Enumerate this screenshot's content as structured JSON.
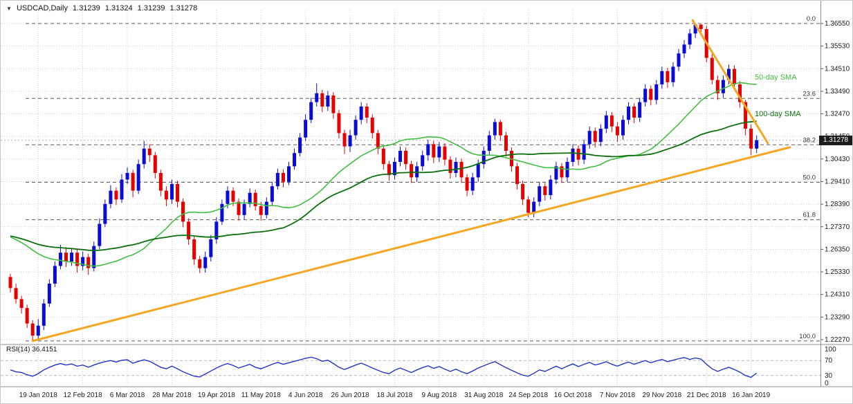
{
  "header": {
    "marker": "▼",
    "symbol_period": "USDCAD,Daily",
    "open": "1.31239",
    "high": "1.31324",
    "low": "1.31239",
    "close": "1.31278"
  },
  "colors": {
    "bull": "#0b0bd6",
    "bear": "#e60000",
    "sma50": "#3fbf3f",
    "sma100": "#0a6e0a",
    "trendline": "#f5a623",
    "rsi": "#2233cc",
    "grid": "#cfcfcf",
    "fib": "#5a5a5a",
    "axis_text": "#1a1a1a",
    "separator": "#8c8c8c",
    "badge_bg": "#1c1c1c",
    "badge_text": "#ffffff"
  },
  "y_axis": {
    "labels": [
      "1.36550",
      "1.35530",
      "1.34510",
      "1.33490",
      "1.32470",
      "1.31450",
      "1.30430",
      "1.29410",
      "1.28390",
      "1.27370",
      "1.26350",
      "1.25330",
      "1.24310",
      "1.23290",
      "1.22270"
    ],
    "price_badge": "1.31278"
  },
  "x_axis": {
    "labels": [
      "19 Jan 2018",
      "12 Feb 2018",
      "6 Mar 2018",
      "28 Mar 2018",
      "19 Apr 2018",
      "11 May 2018",
      "4 Jun 2018",
      "26 Jun 2018",
      "18 Jul 2018",
      "9 Aug 2018",
      "31 Aug 2018",
      "24 Sep 2018",
      "16 Oct 2018",
      "7 Nov 2018",
      "29 Nov 2018",
      "21 Dec 2018",
      "16 Jan 2019"
    ]
  },
  "rsi_pane": {
    "label": "RSI(14) 36.4151",
    "axis_labels": [
      "100",
      "70",
      "30",
      "0"
    ],
    "levels": [
      70,
      30
    ]
  },
  "annotations": {
    "sma50_label": "50-day SMA",
    "sma100_label": "100-day SMA"
  },
  "chart_data": {
    "type": "candlestick",
    "symbol": "USDCAD",
    "timeframe": "Daily",
    "title": "USDCAD,Daily",
    "current": {
      "open": 1.31239,
      "high": 1.31324,
      "low": 1.31239,
      "close": 1.31278
    },
    "y_range": [
      1.2221,
      1.3655
    ],
    "open_first": 1.251,
    "sma_seed": 1.27,
    "hlc": [
      [
        1.2525,
        1.244,
        1.246
      ],
      [
        1.248,
        1.239,
        1.241
      ],
      [
        1.2425,
        1.2345,
        1.237
      ],
      [
        1.2385,
        1.228,
        1.23
      ],
      [
        1.2315,
        1.2221,
        1.2245
      ],
      [
        1.232,
        1.223,
        1.229
      ],
      [
        1.241,
        1.227,
        1.239
      ],
      [
        1.25,
        1.2375,
        1.248
      ],
      [
        1.258,
        1.2465,
        1.256
      ],
      [
        1.2655,
        1.2545,
        1.262
      ],
      [
        1.2645,
        1.2555,
        1.258
      ],
      [
        1.264,
        1.256,
        1.262
      ],
      [
        1.2635,
        1.253,
        1.256
      ],
      [
        1.2625,
        1.254,
        1.26
      ],
      [
        1.2615,
        1.252,
        1.255
      ],
      [
        1.267,
        1.2535,
        1.265
      ],
      [
        1.2775,
        1.2635,
        1.275
      ],
      [
        1.286,
        1.2735,
        1.284
      ],
      [
        1.2925,
        1.282,
        1.29
      ],
      [
        1.2915,
        1.2835,
        1.286
      ],
      [
        1.2975,
        1.2845,
        1.295
      ],
      [
        1.3005,
        1.293,
        1.298
      ],
      [
        1.2995,
        1.287,
        1.29
      ],
      [
        1.304,
        1.2885,
        1.302
      ],
      [
        1.3125,
        1.3,
        1.309
      ],
      [
        1.311,
        1.303,
        1.306
      ],
      [
        1.3075,
        1.2955,
        1.298
      ],
      [
        1.2995,
        1.2875,
        1.29
      ],
      [
        1.292,
        1.283,
        1.286
      ],
      [
        1.295,
        1.284,
        1.293
      ],
      [
        1.2945,
        1.2825,
        1.285
      ],
      [
        1.2865,
        1.2735,
        1.276
      ],
      [
        1.2775,
        1.2655,
        1.268
      ],
      [
        1.2695,
        1.2565,
        1.259
      ],
      [
        1.2605,
        1.2528,
        1.255
      ],
      [
        1.2625,
        1.253,
        1.26
      ],
      [
        1.27,
        1.258,
        1.268
      ],
      [
        1.278,
        1.266,
        1.276
      ],
      [
        1.286,
        1.2745,
        1.284
      ],
      [
        1.292,
        1.282,
        1.29
      ],
      [
        1.2915,
        1.283,
        1.285
      ],
      [
        1.2865,
        1.2765,
        1.279
      ],
      [
        1.286,
        1.277,
        1.284
      ],
      [
        1.291,
        1.2825,
        1.289
      ],
      [
        1.2905,
        1.281,
        1.283
      ],
      [
        1.285,
        1.2765,
        1.279
      ],
      [
        1.287,
        1.2775,
        1.285
      ],
      [
        1.294,
        1.2835,
        1.292
      ],
      [
        1.3,
        1.2905,
        1.298
      ],
      [
        1.2995,
        1.2915,
        1.294
      ],
      [
        1.303,
        1.2925,
        1.301
      ],
      [
        1.309,
        1.2995,
        1.307
      ],
      [
        1.316,
        1.3055,
        1.314
      ],
      [
        1.3245,
        1.3125,
        1.322
      ],
      [
        1.332,
        1.3205,
        1.33
      ],
      [
        1.3385,
        1.328,
        1.334
      ],
      [
        1.3355,
        1.3255,
        1.328
      ],
      [
        1.335,
        1.326,
        1.333
      ],
      [
        1.3345,
        1.3225,
        1.325
      ],
      [
        1.3265,
        1.3135,
        1.316
      ],
      [
        1.3175,
        1.3065,
        1.31
      ],
      [
        1.3175,
        1.3075,
        1.315
      ],
      [
        1.324,
        1.313,
        1.322
      ],
      [
        1.33,
        1.32,
        1.328
      ],
      [
        1.3295,
        1.3205,
        1.323
      ],
      [
        1.3245,
        1.3135,
        1.316
      ],
      [
        1.3175,
        1.3065,
        1.309
      ],
      [
        1.3105,
        1.2995,
        1.302
      ],
      [
        1.3035,
        1.2945,
        1.297
      ],
      [
        1.305,
        1.295,
        1.303
      ],
      [
        1.31,
        1.301,
        1.308
      ],
      [
        1.3095,
        1.2995,
        1.302
      ],
      [
        1.3035,
        1.2935,
        1.296
      ],
      [
        1.303,
        1.294,
        1.301
      ],
      [
        1.308,
        1.299,
        1.306
      ],
      [
        1.313,
        1.3035,
        1.311
      ],
      [
        1.3125,
        1.3025,
        1.305
      ],
      [
        1.312,
        1.303,
        1.31
      ],
      [
        1.3115,
        1.3015,
        1.304
      ],
      [
        1.3055,
        1.2955,
        1.298
      ],
      [
        1.305,
        1.296,
        1.303
      ],
      [
        1.3045,
        1.2935,
        1.296
      ],
      [
        1.2975,
        1.2875,
        1.29
      ],
      [
        1.298,
        1.288,
        1.296
      ],
      [
        1.304,
        1.294,
        1.302
      ],
      [
        1.31,
        1.3,
        1.308
      ],
      [
        1.317,
        1.306,
        1.315
      ],
      [
        1.3225,
        1.313,
        1.321
      ],
      [
        1.322,
        1.3125,
        1.315
      ],
      [
        1.3165,
        1.3055,
        1.308
      ],
      [
        1.3095,
        1.2985,
        1.301
      ],
      [
        1.3025,
        1.2905,
        1.293
      ],
      [
        1.2945,
        1.2835,
        1.286
      ],
      [
        1.2875,
        1.278,
        1.28
      ],
      [
        1.287,
        1.278,
        1.285
      ],
      [
        1.294,
        1.283,
        1.292
      ],
      [
        1.2935,
        1.2855,
        1.288
      ],
      [
        1.297,
        1.286,
        1.295
      ],
      [
        1.303,
        1.293,
        1.301
      ],
      [
        1.3025,
        1.2935,
        1.296
      ],
      [
        1.305,
        1.294,
        1.303
      ],
      [
        1.311,
        1.301,
        1.309
      ],
      [
        1.3105,
        1.3015,
        1.304
      ],
      [
        1.313,
        1.302,
        1.311
      ],
      [
        1.319,
        1.309,
        1.317
      ],
      [
        1.3185,
        1.3095,
        1.312
      ],
      [
        1.32,
        1.31,
        1.318
      ],
      [
        1.326,
        1.316,
        1.324
      ],
      [
        1.3255,
        1.3165,
        1.319
      ],
      [
        1.321,
        1.312,
        1.315
      ],
      [
        1.324,
        1.313,
        1.322
      ],
      [
        1.33,
        1.32,
        1.328
      ],
      [
        1.3295,
        1.3205,
        1.323
      ],
      [
        1.332,
        1.321,
        1.33
      ],
      [
        1.338,
        1.328,
        1.336
      ],
      [
        1.3375,
        1.3285,
        1.331
      ],
      [
        1.34,
        1.329,
        1.338
      ],
      [
        1.346,
        1.336,
        1.344
      ],
      [
        1.3455,
        1.3365,
        1.339
      ],
      [
        1.348,
        1.337,
        1.346
      ],
      [
        1.354,
        1.344,
        1.352
      ],
      [
        1.358,
        1.35,
        1.356
      ],
      [
        1.363,
        1.354,
        1.361
      ],
      [
        1.3655,
        1.359,
        1.365
      ],
      [
        1.3652,
        1.36,
        1.363
      ],
      [
        1.3645,
        1.348,
        1.35
      ],
      [
        1.352,
        1.338,
        1.34
      ],
      [
        1.342,
        1.331,
        1.334
      ],
      [
        1.342,
        1.332,
        1.34
      ],
      [
        1.347,
        1.338,
        1.345
      ],
      [
        1.3465,
        1.3355,
        1.338
      ],
      [
        1.3395,
        1.3275,
        1.33
      ],
      [
        1.331,
        1.315,
        1.318
      ],
      [
        1.32,
        1.306,
        1.309
      ],
      [
        1.315,
        1.307,
        1.31278
      ]
    ],
    "rsi": {
      "period": 14,
      "current": 36.4151,
      "values": [
        45,
        40,
        38,
        32,
        28,
        35,
        45,
        52,
        58,
        62,
        58,
        61,
        55,
        58,
        52,
        58,
        63,
        67,
        70,
        66,
        71,
        72,
        63,
        68,
        72,
        68,
        60,
        52,
        48,
        55,
        48,
        40,
        34,
        28,
        26,
        34,
        42,
        50,
        57,
        62,
        57,
        50,
        55,
        60,
        52,
        48,
        54,
        60,
        65,
        60,
        64,
        68,
        72,
        76,
        79,
        75,
        68,
        71,
        62,
        52,
        46,
        52,
        58,
        63,
        57,
        50,
        44,
        38,
        35,
        44,
        50,
        44,
        38,
        45,
        51,
        56,
        49,
        54,
        47,
        41,
        47,
        40,
        35,
        42,
        50,
        56,
        62,
        67,
        59,
        51,
        44,
        37,
        31,
        28,
        36,
        45,
        41,
        48,
        55,
        48,
        55,
        61,
        54,
        60,
        65,
        58,
        62,
        67,
        60,
        55,
        61,
        66,
        60,
        65,
        70,
        64,
        69,
        73,
        67,
        71,
        75,
        78,
        73,
        77,
        74,
        60,
        48,
        41,
        47,
        52,
        46,
        39,
        30,
        25,
        36.4
      ]
    },
    "fib_levels": [
      {
        "label": "0.0",
        "price": 1.3655
      },
      {
        "label": "23.6",
        "price": 1.33166
      },
      {
        "label": "38.2",
        "price": 1.31072
      },
      {
        "label": "50.0",
        "price": 1.2938
      },
      {
        "label": "61.8",
        "price": 1.27688
      },
      {
        "label": "100.0",
        "price": 1.2221
      }
    ],
    "trendlines": [
      {
        "name": "ascending-support",
        "from": {
          "index": 4,
          "price": 1.2221
        },
        "to": {
          "index": 140,
          "price": 1.3096
        }
      },
      {
        "name": "descending-resistance",
        "from": {
          "index": 122.5,
          "price": 1.367
        },
        "to": {
          "index": 136,
          "price": 1.3115
        }
      }
    ]
  }
}
